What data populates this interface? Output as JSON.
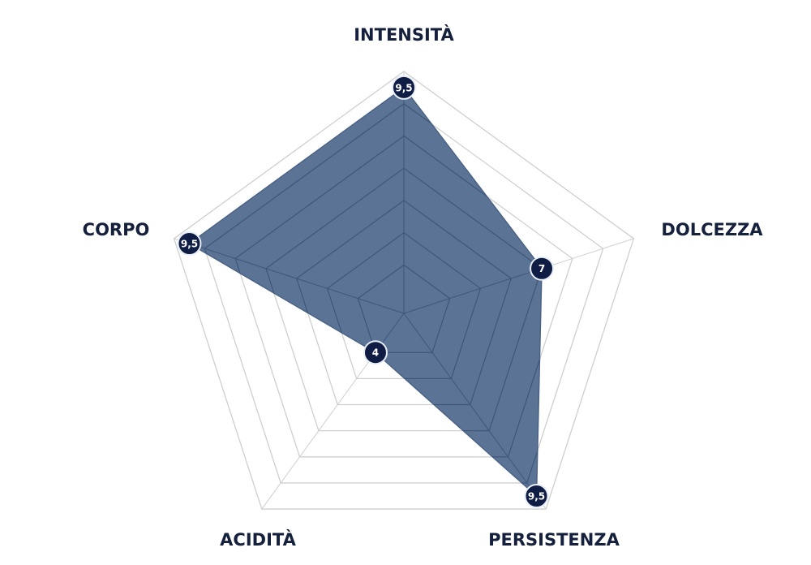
{
  "chart_data": {
    "type": "radar",
    "axes": [
      "INTENSITÀ",
      "DOLCEZZA",
      "PERSISTENZA",
      "ACIDITÀ",
      "CORPO"
    ],
    "values": [
      9.5,
      7,
      9.5,
      4,
      9.5
    ],
    "value_labels": [
      "9,5",
      "7",
      "9,5",
      "4",
      "9,5"
    ],
    "rlim": [
      2.5,
      10
    ],
    "grid_levels": [
      4,
      5,
      6,
      7,
      8,
      9,
      10
    ],
    "grid": true,
    "colors": {
      "fill": "#566e91",
      "marker": "#0f1c44",
      "grid": "#cfcfcf",
      "label": "#15203d"
    }
  }
}
